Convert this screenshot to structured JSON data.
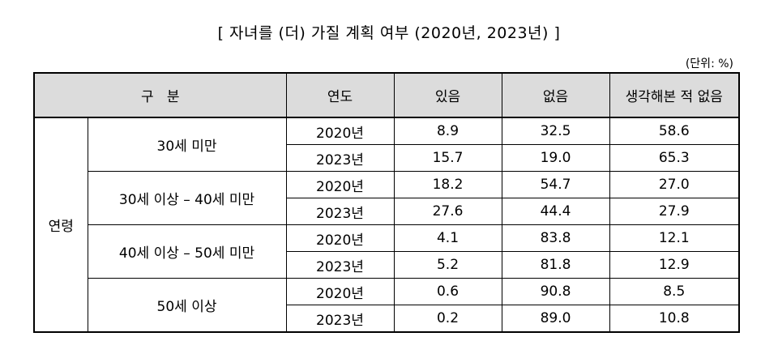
{
  "title": "[ 자녀를 (더) 가질 계획 여부 (2020년, 2023년) ]",
  "unit": "(단위: %)",
  "table": {
    "headers": {
      "category": "구   분",
      "year": "연도",
      "yes": "있음",
      "no": "없음",
      "never_thought": "생각해본 적 없음"
    },
    "group_label": "연령",
    "age_groups": [
      {
        "label": "30세 미만",
        "rows": [
          {
            "year": "2020년",
            "yes": "8.9",
            "no": "32.5",
            "never_thought": "58.6"
          },
          {
            "year": "2023년",
            "yes": "15.7",
            "no": "19.0",
            "never_thought": "65.3"
          }
        ]
      },
      {
        "label": "30세 이상 – 40세 미만",
        "rows": [
          {
            "year": "2020년",
            "yes": "18.2",
            "no": "54.7",
            "never_thought": "27.0"
          },
          {
            "year": "2023년",
            "yes": "27.6",
            "no": "44.4",
            "never_thought": "27.9"
          }
        ]
      },
      {
        "label": "40세 이상 – 50세 미만",
        "rows": [
          {
            "year": "2020년",
            "yes": "4.1",
            "no": "83.8",
            "never_thought": "12.1"
          },
          {
            "year": "2023년",
            "yes": "5.2",
            "no": "81.8",
            "never_thought": "12.9"
          }
        ]
      },
      {
        "label": "50세 이상",
        "rows": [
          {
            "year": "2020년",
            "yes": "0.6",
            "no": "90.8",
            "never_thought": "8.5"
          },
          {
            "year": "2023년",
            "yes": "0.2",
            "no": "89.0",
            "never_thought": "10.8"
          }
        ]
      }
    ]
  }
}
